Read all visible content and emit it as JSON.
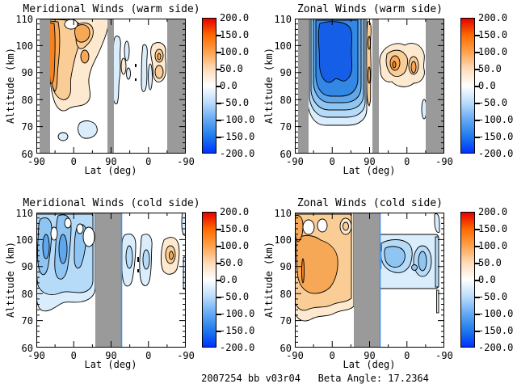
{
  "figure": {
    "footer": "2007254 bb v03r04   Beta Angle: 17.2364",
    "background": "#FFFFFF"
  },
  "axes": {
    "x_label": "Lat (deg)",
    "y_label": "Altitude (km)",
    "x_ticks": [
      "-90",
      "0",
      "90",
      "0",
      "-90"
    ],
    "y_ticks": [
      "110",
      "100",
      "90",
      "80",
      "70",
      "60"
    ]
  },
  "colorbar": {
    "orientation": "vertical",
    "min": -200,
    "max": 200,
    "tick_labels": [
      "200.0",
      "150.0",
      "100.0",
      "50.0",
      "0.0",
      "-50.0",
      "-100.0",
      "-150.0",
      "-200.0"
    ]
  },
  "palette": {
    "positive_fill_levels": [
      "#FDE9CF",
      "#FACD96",
      "#F7A856",
      "#F58220"
    ],
    "negative_fill_levels": [
      "#DAEDFC",
      "#B6DBF8",
      "#8FC5F3",
      "#5EA7ED",
      "#3388E6",
      "#155FE8"
    ],
    "data_gap_gray": "#9A9A9A",
    "gap_edge_blue": "#4A90E2",
    "contour_line": "#000000",
    "colorbar": [
      "#E60000",
      "#FF6A00",
      "#FFA24D",
      "#FFDCB8",
      "#FFFFFF",
      "#BBDDFC",
      "#66AAF5",
      "#1F7CEC",
      "#0033FF"
    ]
  },
  "panels": [
    {
      "title": "Meridional Winds (warm side)",
      "component": "meridional",
      "side": "warm"
    },
    {
      "title": "Zonal Winds (warm side)",
      "component": "zonal",
      "side": "warm"
    },
    {
      "title": "Meridional Winds (cold side)",
      "component": "meridional",
      "side": "cold"
    },
    {
      "title": "Zonal Winds (cold side)",
      "component": "zonal",
      "side": "cold"
    }
  ],
  "chart_data": [
    {
      "type": "heatmap",
      "filled_contour": true,
      "title": "Meridional Winds (warm side)",
      "xlabel": "Lat (deg)",
      "ylabel": "Altitude (km)",
      "x_structure": "two half-orbits: lat -90 to +90 (ascending) then +90 back to -90 (descending)",
      "x_ticks": [
        -90,
        0,
        90,
        0,
        -90
      ],
      "ylim": [
        60,
        110
      ],
      "value_range": [
        -200,
        200
      ],
      "colorbar_tick_step": 50,
      "data_gaps_gray_x_fraction": [
        [
          0.02,
          0.09
        ],
        [
          0.475,
          0.52
        ],
        [
          0.875,
          1.0
        ]
      ],
      "features": [
        {
          "sign": "positive",
          "approx_value": "+25 to +125",
          "lat": "ascending -60..+75",
          "alt_km": [
            78,
            110
          ],
          "desc": "broad orange region, strongest near lat -60..-45 at 80-110 km"
        },
        {
          "sign": "negative",
          "approx_value": "-25 to -50",
          "lat": "ascending -45..+25",
          "alt_km": [
            72,
            79
          ],
          "desc": "two small light-blue blobs near 75 km"
        },
        {
          "sign": "negative",
          "approx_value": "-25 to -50",
          "lat": "descending 80..20",
          "alt_km": [
            80,
            108
          ],
          "desc": "narrow vertical light-blue streaks"
        },
        {
          "sign": "positive",
          "approx_value": "+25 to +75",
          "lat": "descending 15..-25",
          "alt_km": [
            83,
            105
          ],
          "desc": "small orange cells with two cores"
        }
      ]
    },
    {
      "type": "heatmap",
      "filled_contour": true,
      "title": "Zonal Winds (warm side)",
      "xlabel": "Lat (deg)",
      "ylabel": "Altitude (km)",
      "x_structure": "two half-orbits: lat -90 to +90 (ascending) then +90 back to -90 (descending)",
      "x_ticks": [
        -90,
        0,
        90,
        0,
        -90
      ],
      "ylim": [
        60,
        110
      ],
      "value_range": [
        -200,
        200
      ],
      "colorbar_tick_step": 50,
      "data_gaps_gray_x_fraction": [
        [
          0.02,
          0.09
        ],
        [
          0.52,
          0.56
        ],
        [
          0.875,
          1.0
        ]
      ],
      "features": [
        {
          "sign": "negative",
          "approx_value": "-50 to -175",
          "lat": "ascending -60..+80",
          "alt_km": [
            72,
            110
          ],
          "desc": "large nested deep-blue cell, minimum near lat 0..+40 at 85-108 km"
        },
        {
          "sign": "positive",
          "approx_value": "+25 to +75",
          "lat": "descending ~85..75",
          "alt_km": [
            75,
            110
          ],
          "desc": "thin vertical orange streak at gap edge"
        },
        {
          "sign": "positive",
          "approx_value": "+25 to +100",
          "lat": "descending 55..-15",
          "alt_km": [
            82,
            105
          ],
          "desc": "orange cluster with two cores near 90-95 km"
        }
      ]
    },
    {
      "type": "heatmap",
      "filled_contour": true,
      "title": "Meridional Winds (cold side)",
      "xlabel": "Lat (deg)",
      "ylabel": "Altitude (km)",
      "x_structure": "two half-orbits: lat -90 to +90 (ascending) then +90 back to -90 (descending)",
      "x_ticks": [
        -90,
        0,
        90,
        0,
        -90
      ],
      "ylim": [
        60,
        110
      ],
      "value_range": [
        -200,
        200
      ],
      "colorbar_tick_step": 50,
      "data_gaps_gray_x_fraction": [
        [
          0.395,
          0.568
        ]
      ],
      "features": [
        {
          "sign": "negative",
          "approx_value": "-25 to -100",
          "lat": "ascending -90..+50",
          "alt_km": [
            77,
            110
          ],
          "desc": "large blue region with darker vertical cores near lat -65..-25 at 85-108 km"
        },
        {
          "sign": "negative",
          "approx_value": "-25 to -50",
          "lat": "descending 60..5",
          "alt_km": [
            82,
            105
          ],
          "desc": "two vertical light-blue ovals"
        },
        {
          "sign": "positive",
          "approx_value": "+25 to +75",
          "lat": "descending -30..-70",
          "alt_km": [
            84,
            102
          ],
          "desc": "orange cell near right side"
        },
        {
          "sign": "negative",
          "approx_value": "-25 to -50",
          "lat": "descending -85..-90",
          "alt_km": [
            85,
            110
          ],
          "desc": "narrow blue slivers at right edge"
        }
      ]
    },
    {
      "type": "heatmap",
      "filled_contour": true,
      "title": "Zonal Winds (cold side)",
      "xlabel": "Lat (deg)",
      "ylabel": "Altitude (km)",
      "x_structure": "two half-orbits: lat -90 to +90 (ascending) then +90 back to -90 (descending)",
      "x_ticks": [
        -90,
        0,
        90,
        0,
        -90
      ],
      "ylim": [
        60,
        110
      ],
      "value_range": [
        -200,
        200
      ],
      "colorbar_tick_step": 50,
      "data_gaps_gray_x_fraction": [
        [
          0.395,
          0.568
        ]
      ],
      "features": [
        {
          "sign": "positive",
          "approx_value": "+25 to +100",
          "lat": "ascending -90..+50",
          "alt_km": [
            75,
            110
          ],
          "desc": "large orange region, strongest lat -90..-30 at 80-97 km"
        },
        {
          "sign": "negative",
          "approx_value": "-25 to -100",
          "lat": "descending 60..-75",
          "alt_km": [
            82,
            102
          ],
          "desc": "flat light-blue band with two darker cores near lat 35..5 and -15..-45 at 85-97 km"
        },
        {
          "sign": "negative",
          "approx_value": "-25 to -75",
          "lat": "descending -85..-90",
          "alt_km": [
            70,
            110
          ],
          "desc": "narrow blue streaks at right edge"
        }
      ]
    }
  ]
}
